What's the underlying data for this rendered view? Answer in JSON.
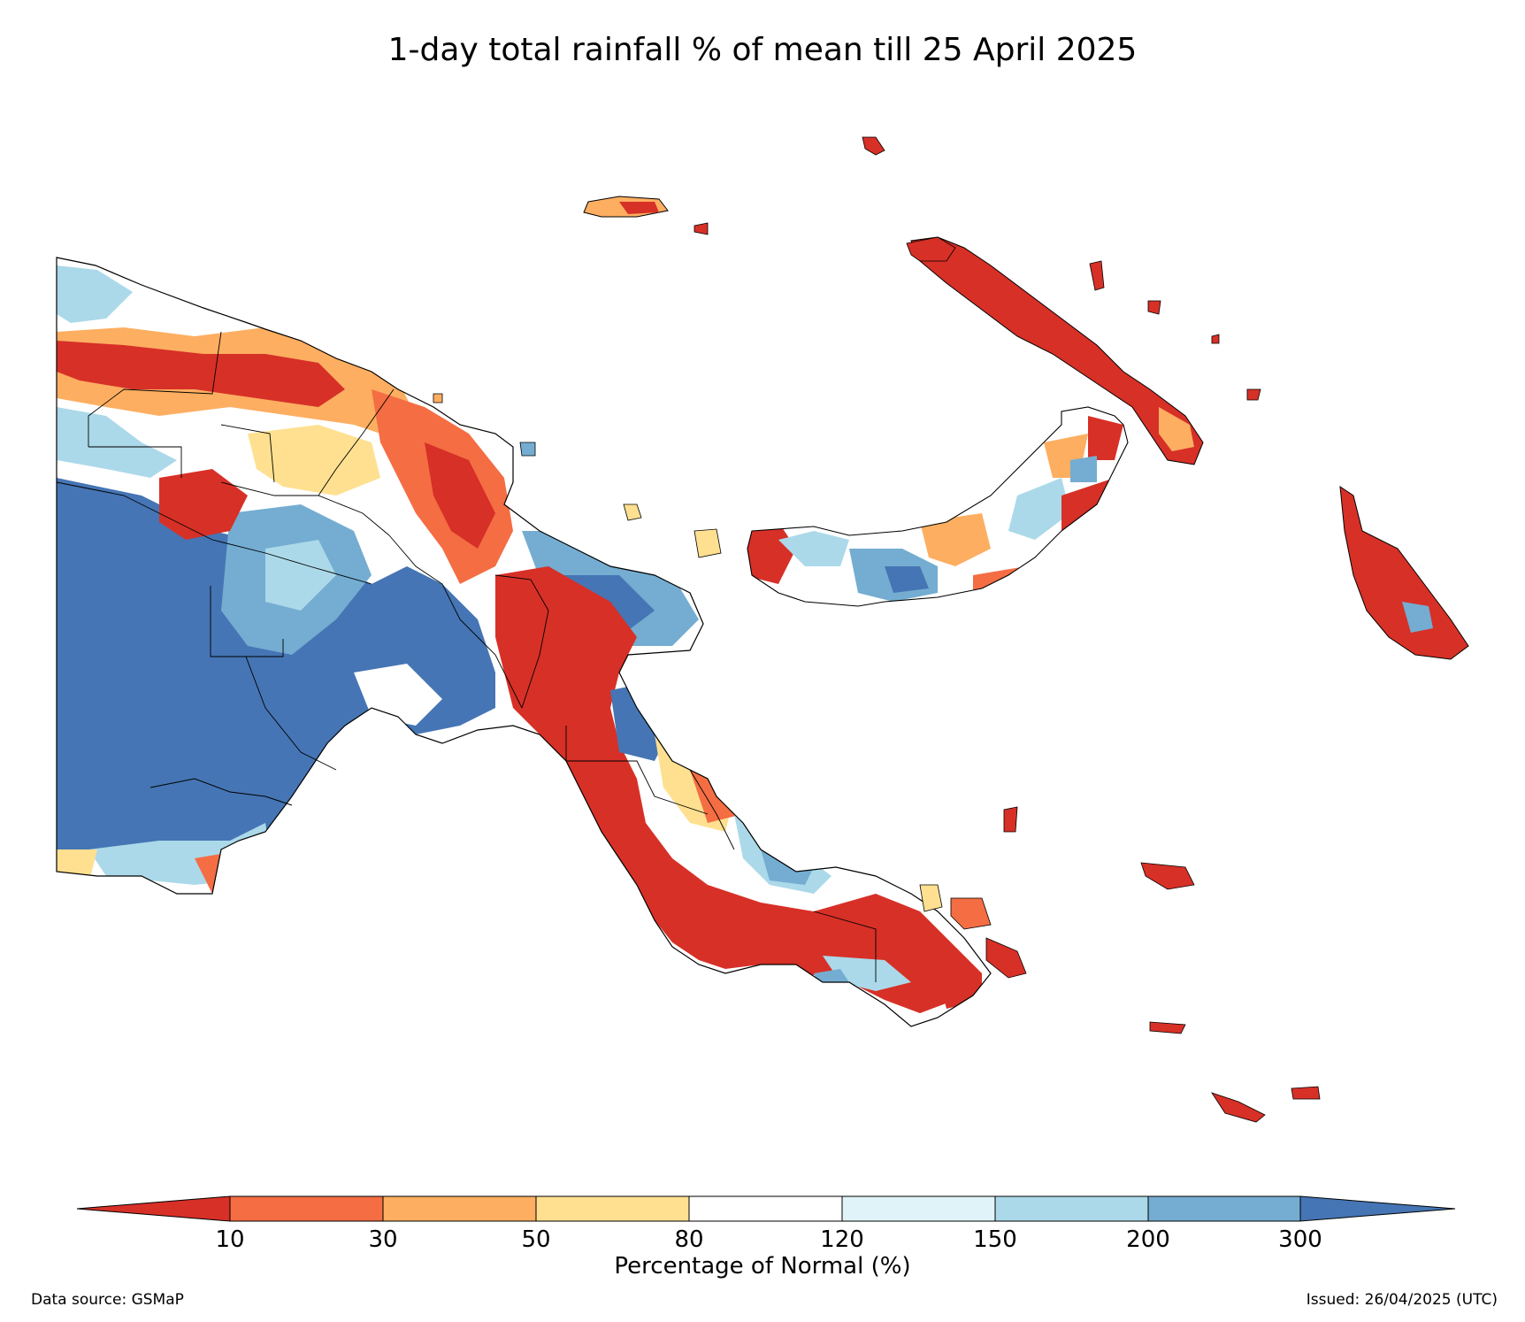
{
  "title": "1-day total rainfall % of mean till 25 April 2025",
  "colorbar": {
    "label": "Percentage of Normal (%)",
    "ticks": [
      "10",
      "30",
      "50",
      "80",
      "120",
      "150",
      "200",
      "300"
    ],
    "colors": {
      "below_10": "#d73027",
      "10_30": "#f46d43",
      "30_50": "#fdae61",
      "50_80": "#fee090",
      "80_120": "#ffffff",
      "120_150": "#e0f3f8",
      "150_200": "#abd9e9",
      "200_300": "#74add1",
      "above_300": "#4575b4"
    }
  },
  "footer": {
    "source": "Data source: GSMaP",
    "issued": "Issued: 26/04/2025 (UTC)"
  }
}
